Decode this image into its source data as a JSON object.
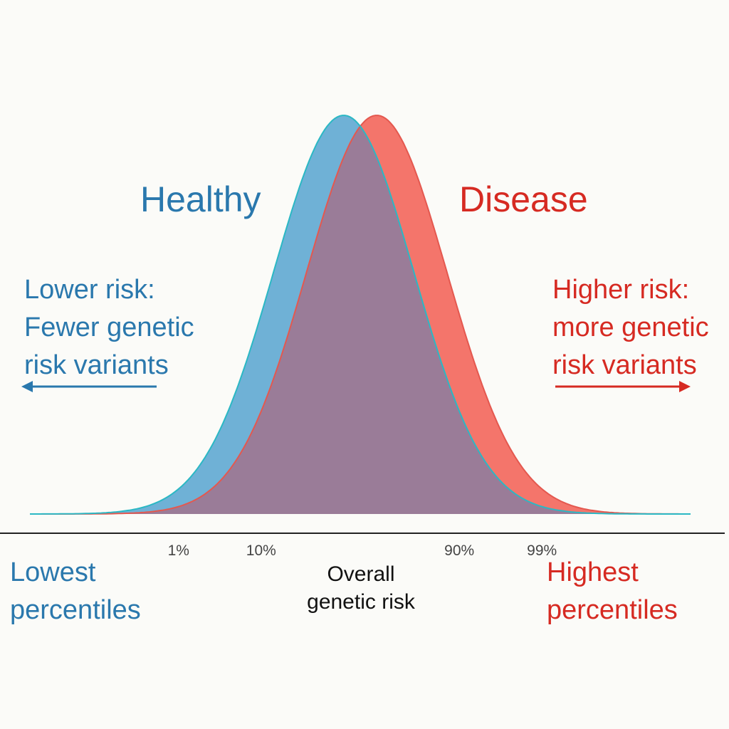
{
  "chart_data": {
    "type": "area",
    "title": "",
    "xlabel": "Overall genetic risk",
    "ylabel": "",
    "xlim": [
      -4,
      4
    ],
    "series": [
      {
        "name": "Healthy",
        "label": "Healthy",
        "mean": -0.2,
        "sd": 0.85,
        "color": "#6fb1d6",
        "edge": "#2bb8c4"
      },
      {
        "name": "Disease",
        "label": "Disease",
        "mean": 0.2,
        "sd": 0.85,
        "color": "#f4756b",
        "edge": "#e4584f"
      }
    ],
    "overlap_color": "#9a7c98",
    "percentile_ticks": [
      {
        "label": "1%",
        "x": -2.2
      },
      {
        "label": "10%",
        "x": -1.2
      },
      {
        "label": "90%",
        "x": 1.2
      },
      {
        "label": "99%",
        "x": 2.2
      }
    ],
    "annotations": {
      "left_lines": [
        "Lower risk:",
        "Fewer genetic",
        "risk variants"
      ],
      "right_lines": [
        "Higher risk:",
        "more genetic",
        "risk variants"
      ],
      "left_axis_lines": [
        "Lowest",
        "percentiles"
      ],
      "right_axis_lines": [
        "Highest",
        "percentiles"
      ],
      "center_axis_lines": [
        "Overall",
        "genetic risk"
      ]
    },
    "colors": {
      "healthy_text": "#2a78ad",
      "disease_text": "#d62a22",
      "axis": "#222222"
    }
  }
}
